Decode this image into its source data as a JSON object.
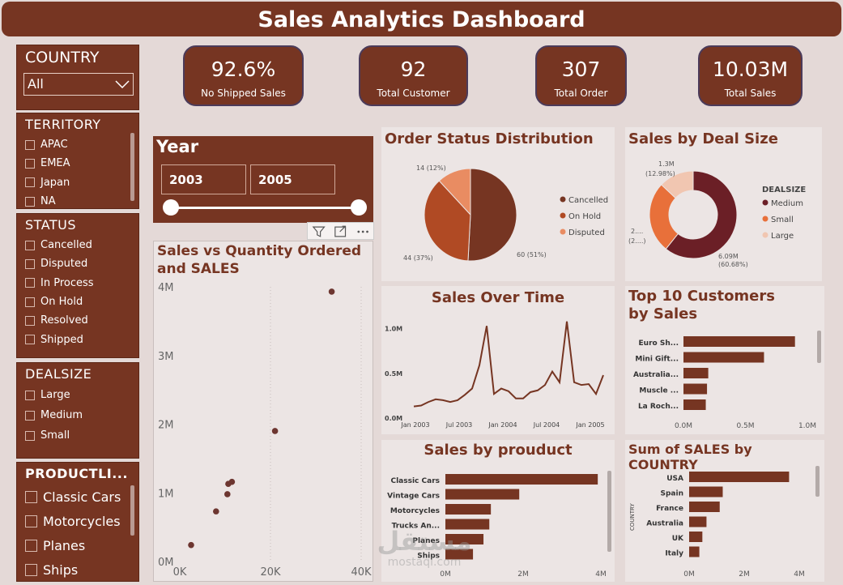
{
  "title": "Sales Analytics Dashboard",
  "watermark": "mostaql.com",
  "country_slicer": {
    "label": "COUNTRY",
    "selected": "All"
  },
  "territory_slicer": {
    "label": "TERRITORY",
    "options": [
      "APAC",
      "EMEA",
      "Japan",
      "NA"
    ]
  },
  "status_slicer": {
    "label": "STATUS",
    "options": [
      "Cancelled",
      "Disputed",
      "In Process",
      "On Hold",
      "Resolved",
      "Shipped"
    ]
  },
  "dealsize_slicer": {
    "label": "DEALSIZE",
    "options": [
      "Large",
      "Medium",
      "Small"
    ]
  },
  "productline_slicer": {
    "label": "PRODUCTLI...",
    "options": [
      "Classic Cars",
      "Motorcycles",
      "Planes",
      "Ships"
    ]
  },
  "kpis": [
    {
      "value": "92.6%",
      "label": "No Shipped Sales"
    },
    {
      "value": "92",
      "label": "Total Customer"
    },
    {
      "value": "307",
      "label": "Total Order"
    },
    {
      "value": "10.03M",
      "label": "Total Sales"
    }
  ],
  "year_slicer": {
    "label": "Year",
    "start": "2003",
    "end": "2005"
  },
  "colors": {
    "brown": "#763522",
    "dark_maroon": "#6b1f26",
    "orange": "#e8703a",
    "peach": "#f1c6b1",
    "mid": "#b04a24",
    "light": "#e98c62"
  },
  "charts": {
    "scatter": {
      "title": "Sales vs Quantity Ordered and SALES",
      "chart_data": {
        "type": "scatter",
        "title": "Sales vs Quantity Ordered and SALES",
        "x_ticks": [
          "0K",
          "20K",
          "40K"
        ],
        "y_ticks": [
          "0M",
          "1M",
          "2M",
          "3M",
          "4M"
        ],
        "xlim": [
          0,
          40000
        ],
        "ylim": [
          0,
          4000000
        ],
        "points": [
          {
            "x": 2500,
            "y": 240000
          },
          {
            "x": 8000,
            "y": 730000
          },
          {
            "x": 10500,
            "y": 980000
          },
          {
            "x": 10700,
            "y": 1130000
          },
          {
            "x": 11500,
            "y": 1160000
          },
          {
            "x": 21000,
            "y": 1900000
          },
          {
            "x": 33500,
            "y": 3930000
          }
        ]
      }
    },
    "order_status": {
      "title": "Order Status Distribution",
      "chart_data": {
        "type": "pie",
        "title": "Order Status Distribution",
        "legend_placement": "right",
        "slices": [
          {
            "name": "Cancelled",
            "value": 60,
            "label": "60 (51%)"
          },
          {
            "name": "On Hold",
            "value": 44,
            "label": "44 (37%)"
          },
          {
            "name": "Disputed",
            "value": 14,
            "label": "14 (12%)"
          }
        ]
      }
    },
    "deal_size": {
      "title": "Sales by Deal Size",
      "chart_data": {
        "type": "pie",
        "title": "Sales by Deal Size",
        "legend_title": "DEALSIZE",
        "legend_placement": "right",
        "slices": [
          {
            "name": "Medium",
            "value": 6.09,
            "label1": "6.09M",
            "label2": "(60.68%)"
          },
          {
            "name": "Small",
            "value": 2.64,
            "label1": "2....",
            "label2": "(2....)"
          },
          {
            "name": "Large",
            "value": 1.3,
            "label1": "1.3M",
            "label2": "(12.98%)"
          }
        ]
      }
    },
    "sales_over_time": {
      "title": "Sales Over Time",
      "chart_data": {
        "type": "line",
        "title": "Sales Over Time",
        "x_ticks": [
          "Jan 2003",
          "Jul 2003",
          "Jan 2004",
          "Jul 2004",
          "Jan 2005"
        ],
        "y_ticks": [
          "0.0M",
          "0.5M",
          "1.0M"
        ],
        "ylim": [
          0,
          1150000
        ],
        "values": [
          130000,
          140000,
          180000,
          210000,
          200000,
          180000,
          200000,
          260000,
          330000,
          590000,
          1030000,
          270000,
          330000,
          300000,
          220000,
          220000,
          290000,
          310000,
          370000,
          520000,
          400000,
          1080000,
          400000,
          370000,
          380000,
          270000,
          480000
        ]
      }
    },
    "top_customers": {
      "title": "Top 10 Customers by Sales",
      "chart_data": {
        "type": "bar",
        "orientation": "horizontal",
        "title": "Top 10 Customers by Sales",
        "categories": [
          "Euro Sh...",
          "Mini Gift...",
          "Australia...",
          "Muscle ...",
          "La Roch..."
        ],
        "values": [
          0.9,
          0.65,
          0.2,
          0.19,
          0.18
        ],
        "x_ticks": [
          "0.0M",
          "0.5M",
          "1.0M"
        ],
        "xlim": [
          0,
          1.0
        ]
      }
    },
    "sales_by_product": {
      "title": "Sales by prouduct",
      "chart_data": {
        "type": "bar",
        "orientation": "horizontal",
        "title": "Sales by prouduct",
        "categories": [
          "Classic Cars",
          "Vintage Cars",
          "Motorcycles",
          "Trucks An...",
          "Planes",
          "Ships"
        ],
        "values": [
          3.92,
          1.9,
          1.17,
          1.13,
          0.98,
          0.71
        ],
        "x_ticks": [
          "0M",
          "2M",
          "4M"
        ],
        "xlim": [
          0,
          4
        ]
      }
    },
    "sales_by_country": {
      "title": "Sum of SALES by COUNTRY",
      "chart_data": {
        "type": "bar",
        "orientation": "horizontal",
        "title": "Sum of SALES by COUNTRY",
        "ylabel": "COUNTRY",
        "categories": [
          "USA",
          "Spain",
          "France",
          "Australia",
          "UK",
          "Italy"
        ],
        "values": [
          3.63,
          1.22,
          1.11,
          0.63,
          0.48,
          0.37
        ],
        "x_ticks": [
          "0M",
          "2M",
          "4M"
        ],
        "xlim": [
          0,
          4
        ]
      }
    }
  }
}
